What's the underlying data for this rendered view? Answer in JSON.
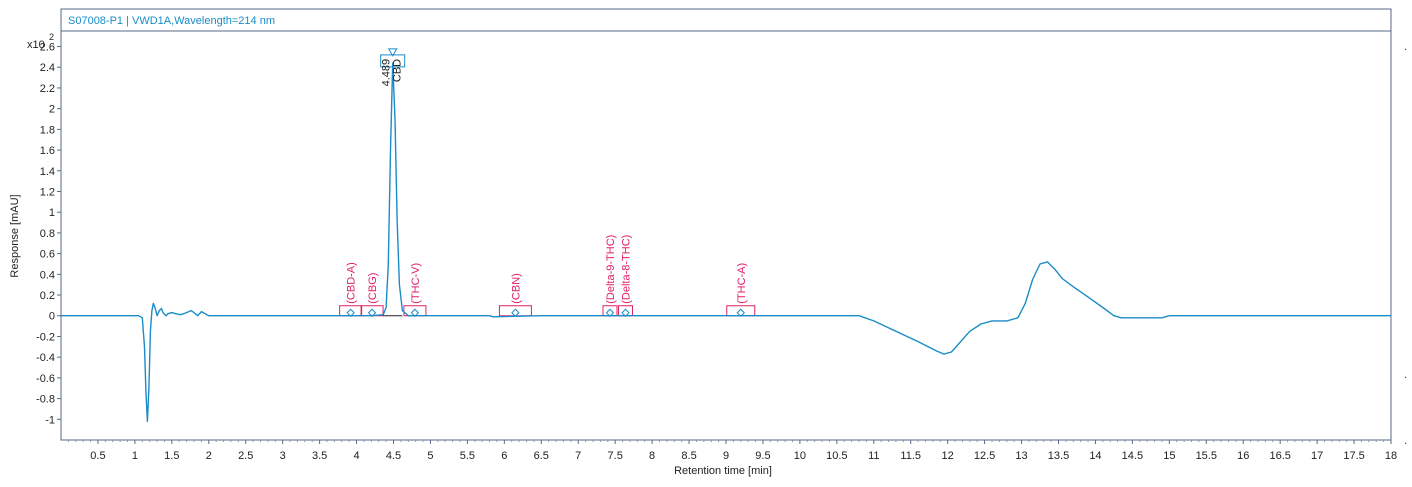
{
  "chart_data": {
    "type": "line",
    "title": "S07008-P1 | VWD1A,Wavelength=214 nm",
    "xlabel": "Retention time [min]",
    "ylabel": "Response [mAU]",
    "y_multiplier": "x10",
    "y_multiplier_exp": "2",
    "xlim": [
      0,
      18
    ],
    "ylim": [
      -1.2,
      2.75
    ],
    "x_ticks": [
      0.5,
      1,
      1.5,
      2,
      2.5,
      3,
      3.5,
      4,
      4.5,
      5,
      5.5,
      6,
      6.5,
      7,
      7.5,
      8,
      8.5,
      9,
      9.5,
      10,
      10.5,
      11,
      11.5,
      12,
      12.5,
      13,
      13.5,
      14,
      14.5,
      15,
      15.5,
      16,
      16.5,
      17,
      17.5,
      18
    ],
    "y_ticks": [
      -1,
      -0.8,
      -0.6,
      -0.4,
      -0.2,
      0,
      0.2,
      0.4,
      0.6,
      0.8,
      1,
      1.2,
      1.4,
      1.6,
      1.8,
      2,
      2.2,
      2.4,
      2.6
    ],
    "grid": false,
    "series": [
      {
        "color": "#1a8cc8",
        "x": [
          0,
          1.05,
          1.1,
          1.13,
          1.15,
          1.17,
          1.19,
          1.21,
          1.23,
          1.25,
          1.28,
          1.3,
          1.33,
          1.36,
          1.38,
          1.42,
          1.45,
          1.5,
          1.55,
          1.62,
          1.7,
          1.76,
          1.8,
          1.85,
          1.9,
          1.95,
          2.0,
          2.1,
          3.5,
          4.2,
          4.36,
          4.4,
          4.43,
          4.46,
          4.489,
          4.52,
          4.55,
          4.58,
          4.62,
          4.7,
          5.8,
          5.85,
          6.5,
          10.8,
          11.0,
          11.3,
          11.6,
          11.85,
          11.95,
          12.05,
          12.15,
          12.3,
          12.45,
          12.6,
          12.8,
          12.95,
          13.05,
          13.15,
          13.25,
          13.35,
          13.45,
          13.55,
          13.7,
          13.9,
          14.1,
          14.25,
          14.35,
          14.5,
          14.9,
          15.0,
          18.0
        ],
        "y": [
          0,
          0,
          -0.02,
          -0.3,
          -0.75,
          -1.02,
          -0.7,
          -0.15,
          0.05,
          0.12,
          0.06,
          0.0,
          0.05,
          0.07,
          0.03,
          0.0,
          0.02,
          0.03,
          0.02,
          0.01,
          0.03,
          0.05,
          0.03,
          0.0,
          0.04,
          0.02,
          0.0,
          0.0,
          0.0,
          0.0,
          0.01,
          0.08,
          0.5,
          1.6,
          2.44,
          1.9,
          0.9,
          0.3,
          0.05,
          0.0,
          0.0,
          -0.01,
          0.0,
          0.0,
          -0.05,
          -0.15,
          -0.25,
          -0.34,
          -0.37,
          -0.35,
          -0.27,
          -0.15,
          -0.08,
          -0.05,
          -0.05,
          -0.02,
          0.12,
          0.35,
          0.5,
          0.52,
          0.45,
          0.36,
          0.28,
          0.18,
          0.08,
          0.0,
          -0.02,
          -0.02,
          -0.02,
          0.0,
          0.0
        ]
      }
    ],
    "peak_labels": [
      {
        "time": "4.489",
        "name": "CBD",
        "x": 4.489,
        "y": 2.5
      }
    ],
    "expected_compounds": [
      {
        "name": "(CBD-A)",
        "x": 3.92
      },
      {
        "name": "(CBG)",
        "x": 4.21
      },
      {
        "name": "(THC-V)",
        "x": 4.79
      },
      {
        "name": "(CBN)",
        "x": 6.15
      },
      {
        "name": "(Delta-9-THC)",
        "x": 7.43
      },
      {
        "name": "(Delta-8-THC)",
        "x": 7.64
      },
      {
        "name": "(THC-A)",
        "x": 9.2
      }
    ],
    "colors": {
      "trace": "#1a8cc8",
      "compound_marker": "#e0206a",
      "title_text": "#1a8cc8",
      "frame": "#5a6a8a"
    }
  }
}
